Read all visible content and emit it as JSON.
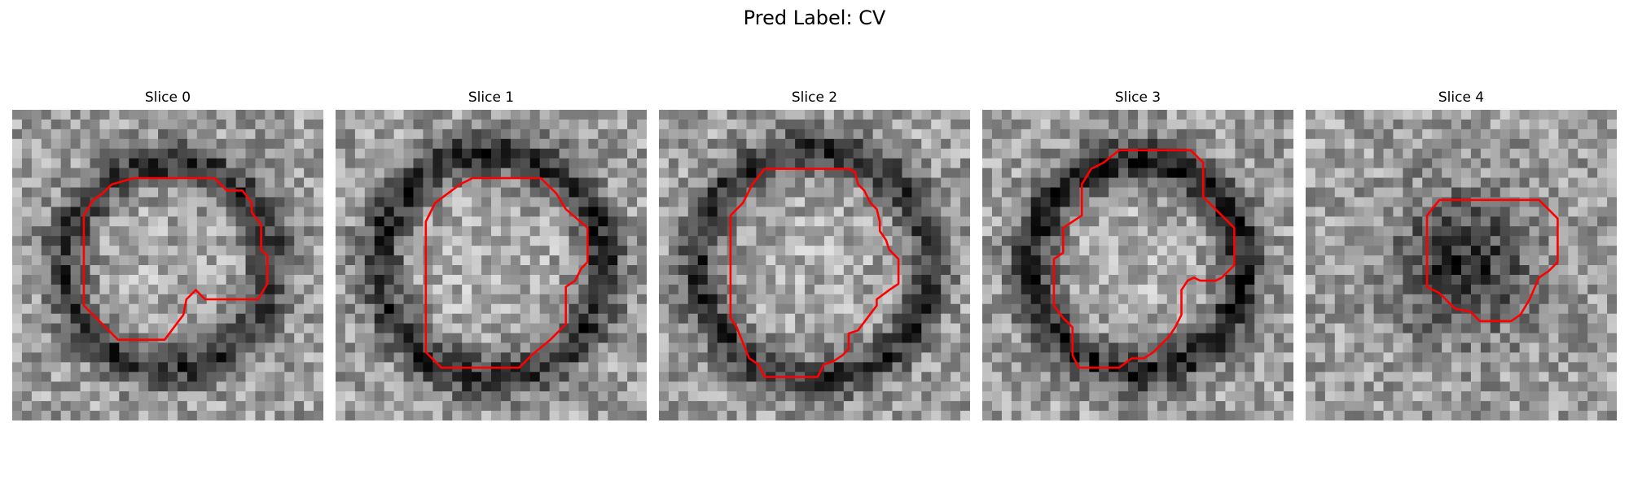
{
  "figure": {
    "title": "Pred Label: CV"
  },
  "panels": [
    {
      "title": "Slice 0",
      "seed": 11,
      "ring_radius": 0.33,
      "ring_strength": 0.42,
      "center_brightness": 0.05,
      "contour": [
        [
          0.39,
          0.22
        ],
        [
          0.65,
          0.22
        ],
        [
          0.69,
          0.26
        ],
        [
          0.74,
          0.26
        ],
        [
          0.77,
          0.3
        ],
        [
          0.77,
          0.33
        ],
        [
          0.8,
          0.37
        ],
        [
          0.8,
          0.45
        ],
        [
          0.82,
          0.47
        ],
        [
          0.82,
          0.56
        ],
        [
          0.79,
          0.61
        ],
        [
          0.62,
          0.61
        ],
        [
          0.59,
          0.58
        ],
        [
          0.56,
          0.61
        ],
        [
          0.55,
          0.66
        ],
        [
          0.52,
          0.7
        ],
        [
          0.49,
          0.74
        ],
        [
          0.34,
          0.74
        ],
        [
          0.29,
          0.69
        ],
        [
          0.23,
          0.63
        ],
        [
          0.23,
          0.34
        ],
        [
          0.26,
          0.29
        ],
        [
          0.29,
          0.27
        ],
        [
          0.32,
          0.24
        ]
      ]
    },
    {
      "title": "Slice 1",
      "seed": 27,
      "ring_radius": 0.36,
      "ring_strength": 0.45,
      "center_brightness": 0.08,
      "contour": [
        [
          0.44,
          0.22
        ],
        [
          0.66,
          0.22
        ],
        [
          0.71,
          0.27
        ],
        [
          0.74,
          0.32
        ],
        [
          0.81,
          0.38
        ],
        [
          0.81,
          0.49
        ],
        [
          0.79,
          0.51
        ],
        [
          0.77,
          0.55
        ],
        [
          0.74,
          0.57
        ],
        [
          0.74,
          0.69
        ],
        [
          0.69,
          0.74
        ],
        [
          0.63,
          0.79
        ],
        [
          0.59,
          0.83
        ],
        [
          0.34,
          0.83
        ],
        [
          0.29,
          0.78
        ],
        [
          0.29,
          0.36
        ],
        [
          0.32,
          0.3
        ],
        [
          0.36,
          0.27
        ],
        [
          0.4,
          0.24
        ]
      ]
    },
    {
      "title": "Slice 2",
      "seed": 43,
      "ring_radius": 0.37,
      "ring_strength": 0.42,
      "center_brightness": 0.06,
      "contour": [
        [
          0.34,
          0.19
        ],
        [
          0.61,
          0.19
        ],
        [
          0.63,
          0.2
        ],
        [
          0.64,
          0.24
        ],
        [
          0.66,
          0.26
        ],
        [
          0.68,
          0.3
        ],
        [
          0.7,
          0.32
        ],
        [
          0.71,
          0.36
        ],
        [
          0.71,
          0.39
        ],
        [
          0.73,
          0.42
        ],
        [
          0.74,
          0.45
        ],
        [
          0.77,
          0.48
        ],
        [
          0.77,
          0.56
        ],
        [
          0.74,
          0.58
        ],
        [
          0.7,
          0.61
        ],
        [
          0.7,
          0.63
        ],
        [
          0.67,
          0.67
        ],
        [
          0.64,
          0.71
        ],
        [
          0.61,
          0.72
        ],
        [
          0.61,
          0.77
        ],
        [
          0.59,
          0.79
        ],
        [
          0.56,
          0.81
        ],
        [
          0.53,
          0.82
        ],
        [
          0.51,
          0.86
        ],
        [
          0.34,
          0.86
        ],
        [
          0.32,
          0.82
        ],
        [
          0.29,
          0.8
        ],
        [
          0.27,
          0.75
        ],
        [
          0.25,
          0.7
        ],
        [
          0.23,
          0.67
        ],
        [
          0.23,
          0.34
        ],
        [
          0.27,
          0.3
        ],
        [
          0.29,
          0.26
        ],
        [
          0.3,
          0.24
        ]
      ]
    },
    {
      "title": "Slice 3",
      "seed": 59,
      "ring_radius": 0.34,
      "ring_strength": 0.48,
      "center_brightness": 0.07,
      "contour": [
        [
          0.44,
          0.13
        ],
        [
          0.67,
          0.13
        ],
        [
          0.71,
          0.17
        ],
        [
          0.71,
          0.28
        ],
        [
          0.77,
          0.34
        ],
        [
          0.81,
          0.38
        ],
        [
          0.81,
          0.5
        ],
        [
          0.77,
          0.54
        ],
        [
          0.75,
          0.55
        ],
        [
          0.7,
          0.55
        ],
        [
          0.68,
          0.54
        ],
        [
          0.66,
          0.55
        ],
        [
          0.64,
          0.58
        ],
        [
          0.64,
          0.66
        ],
        [
          0.62,
          0.7
        ],
        [
          0.6,
          0.73
        ],
        [
          0.55,
          0.78
        ],
        [
          0.52,
          0.8
        ],
        [
          0.48,
          0.8
        ],
        [
          0.44,
          0.83
        ],
        [
          0.31,
          0.83
        ],
        [
          0.29,
          0.79
        ],
        [
          0.29,
          0.7
        ],
        [
          0.26,
          0.67
        ],
        [
          0.23,
          0.63
        ],
        [
          0.23,
          0.48
        ],
        [
          0.26,
          0.46
        ],
        [
          0.26,
          0.38
        ],
        [
          0.32,
          0.34
        ],
        [
          0.32,
          0.24
        ],
        [
          0.35,
          0.19
        ],
        [
          0.39,
          0.17
        ]
      ]
    },
    {
      "title": "Slice 4",
      "seed": 73,
      "ring_radius": 0.0,
      "ring_strength": 0.0,
      "center_brightness": -0.45,
      "contour": [
        [
          0.43,
          0.29
        ],
        [
          0.75,
          0.29
        ],
        [
          0.81,
          0.35
        ],
        [
          0.81,
          0.49
        ],
        [
          0.78,
          0.52
        ],
        [
          0.75,
          0.54
        ],
        [
          0.72,
          0.61
        ],
        [
          0.69,
          0.66
        ],
        [
          0.66,
          0.68
        ],
        [
          0.56,
          0.68
        ],
        [
          0.53,
          0.65
        ],
        [
          0.48,
          0.64
        ],
        [
          0.43,
          0.59
        ],
        [
          0.39,
          0.57
        ],
        [
          0.39,
          0.34
        ]
      ]
    }
  ],
  "colors": {
    "contour": "#ff0000",
    "background": "#ffffff",
    "text": "#000000"
  }
}
